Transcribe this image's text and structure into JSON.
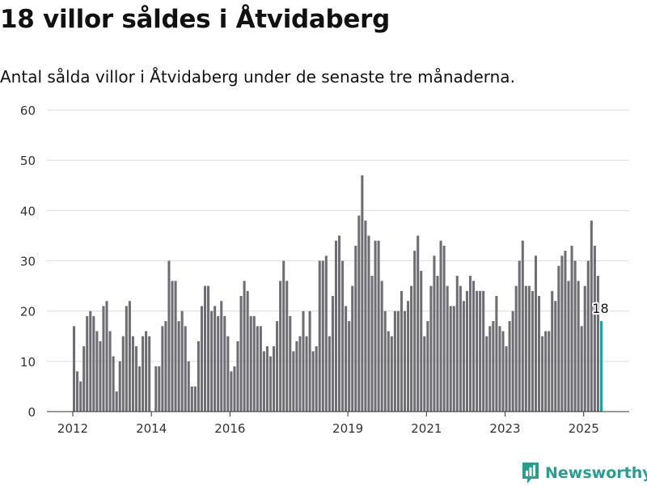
{
  "title": "18 villor såldes i Åtvidaberg",
  "subtitle": "Antal sålda villor i Åtvidaberg under de senaste tre månaderna.",
  "brand": "Newsworthy",
  "colors": {
    "bar": "#6e6d72",
    "highlight": "#22a39a",
    "grid": "#dcdcdc",
    "brand": "#2a9d8f"
  },
  "chart_data": {
    "type": "bar",
    "ylim": [
      0,
      60
    ],
    "yticks": [
      0,
      10,
      20,
      30,
      40,
      50,
      60
    ],
    "grid": true,
    "xticks": [
      {
        "label": "2012",
        "year": 2012
      },
      {
        "label": "2014",
        "year": 2014
      },
      {
        "label": "2016",
        "year": 2016
      },
      {
        "label": "2019",
        "year": 2019
      },
      {
        "label": "2021",
        "year": 2021
      },
      {
        "label": "2023",
        "year": 2023
      },
      {
        "label": "2025",
        "year": 2025
      }
    ],
    "start": "2012-01",
    "period": "month",
    "values": [
      17,
      8,
      6,
      13,
      19,
      20,
      19,
      16,
      14,
      21,
      22,
      16,
      11,
      4,
      10,
      15,
      21,
      22,
      15,
      13,
      9,
      15,
      16,
      15,
      0,
      9,
      9,
      17,
      18,
      30,
      26,
      26,
      18,
      20,
      17,
      10,
      5,
      5,
      14,
      21,
      25,
      25,
      20,
      21,
      19,
      22,
      19,
      15,
      8,
      9,
      14,
      23,
      26,
      24,
      19,
      19,
      17,
      17,
      12,
      13,
      11,
      13,
      18,
      26,
      30,
      26,
      19,
      12,
      14,
      15,
      20,
      15,
      20,
      12,
      13,
      30,
      30,
      31,
      15,
      23,
      34,
      35,
      30,
      21,
      18,
      25,
      33,
      39,
      47,
      38,
      35,
      27,
      34,
      34,
      26,
      20,
      16,
      15,
      20,
      20,
      24,
      20,
      22,
      25,
      32,
      35,
      28,
      15,
      18,
      25,
      31,
      27,
      34,
      33,
      25,
      21,
      21,
      27,
      25,
      22,
      24,
      27,
      26,
      24,
      24,
      24,
      15,
      17,
      18,
      23,
      17,
      16,
      13,
      18,
      20,
      25,
      30,
      34,
      25,
      25,
      24,
      31,
      23,
      15,
      16,
      16,
      24,
      22,
      29,
      31,
      32,
      26,
      33,
      30,
      26,
      17,
      25,
      30,
      38,
      33,
      27,
      18
    ],
    "highlight_label": "18"
  }
}
